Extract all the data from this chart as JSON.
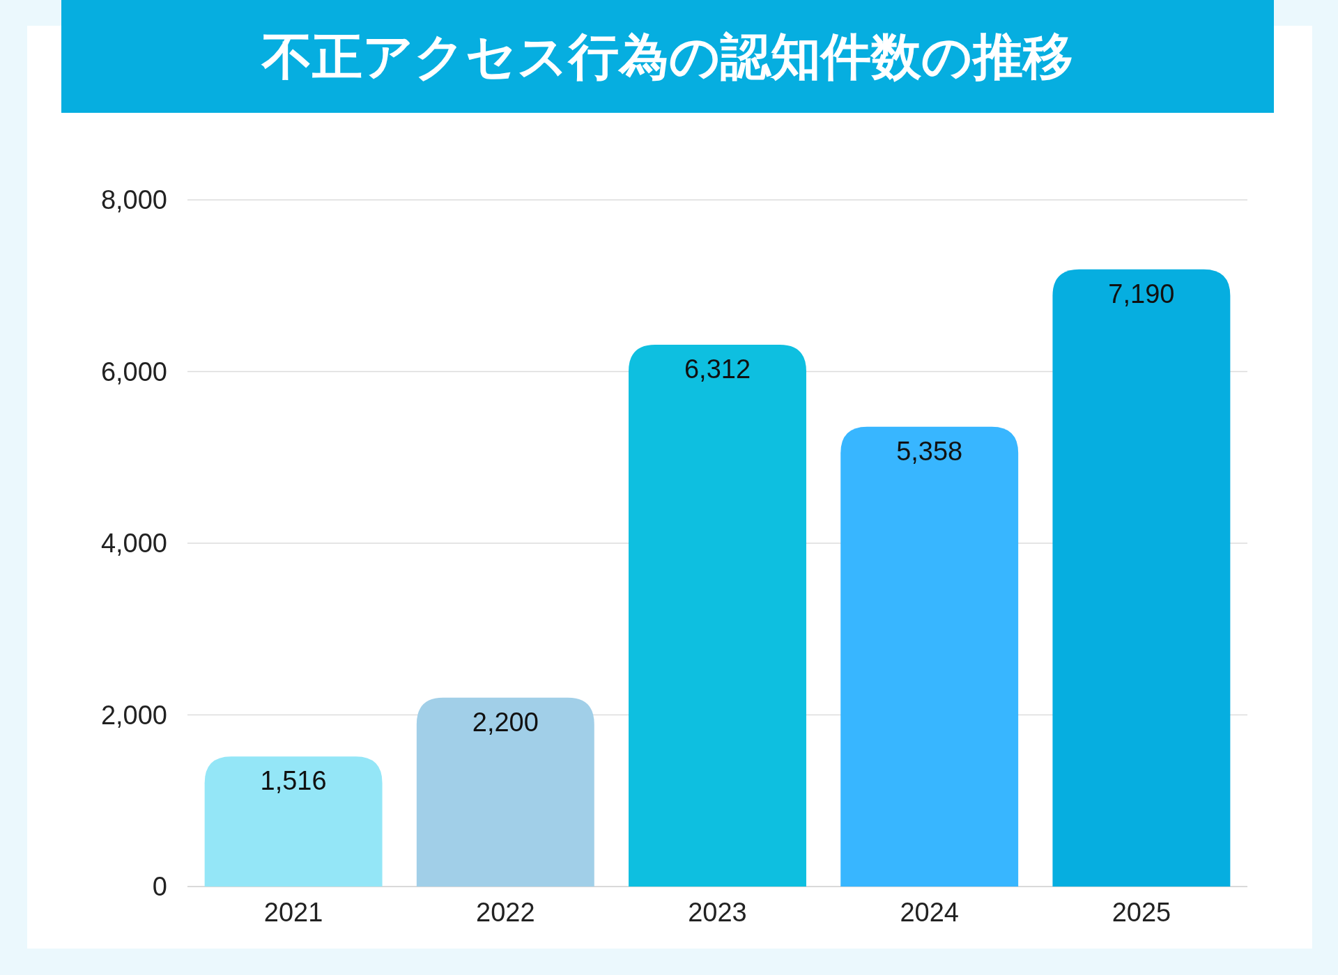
{
  "chart_data": {
    "type": "bar",
    "title": "不正アクセス行為の認知件数の推移",
    "categories": [
      "2021",
      "2022",
      "2023",
      "2024",
      "2025"
    ],
    "values": [
      1516,
      2200,
      6312,
      5358,
      7190
    ],
    "value_labels": [
      "1,516",
      "2,200",
      "6,312",
      "5,358",
      "7,190"
    ],
    "colors": [
      "#94e6f7",
      "#a1cfe8",
      "#0ebfe0",
      "#38b6ff",
      "#06aee0"
    ],
    "ylim": [
      0,
      8000
    ],
    "yticks": [
      0,
      {
        "value": 2000,
        "label": "2,000"
      },
      {
        "value": 4000,
        "label": "4,000"
      },
      {
        "value": 6000,
        "label": "6,000"
      },
      {
        "value": 8000,
        "label": "8,000"
      }
    ],
    "grid": "y"
  }
}
